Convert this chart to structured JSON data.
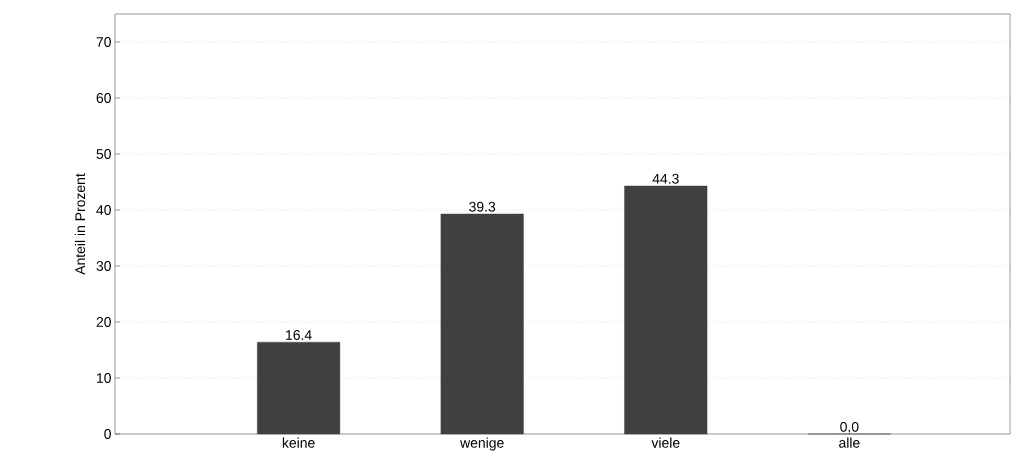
{
  "chart_data": {
    "type": "bar",
    "ylabel": "Anteil in Prozent",
    "categories": [
      "keine",
      "wenige",
      "viele",
      "alle"
    ],
    "values": [
      16.4,
      39.3,
      44.3,
      0.0
    ],
    "value_labels": [
      "16.4",
      "39.3",
      "44.3",
      "0.0"
    ],
    "color": "#404040",
    "ylim": [
      0,
      75
    ],
    "yticks": [
      0,
      10,
      20,
      30,
      40,
      50,
      60,
      70
    ],
    "grid": "y"
  }
}
